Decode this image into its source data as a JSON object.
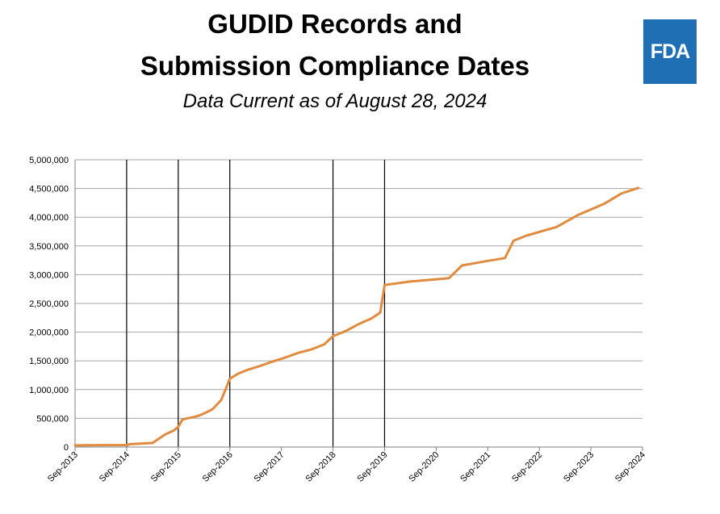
{
  "header": {
    "title_line1": "GUDID Records and",
    "title_line2": "Submission Compliance Dates",
    "subtitle": "Data Current as of August 28, 2024",
    "logo_text": "FDA"
  },
  "colors": {
    "line": "#e08b3e",
    "grid": "#a6a6a6",
    "marker": "#000000",
    "logo": "#1f6fb4"
  },
  "chart_data": {
    "type": "line",
    "title": "GUDID Records and Submission Compliance Dates",
    "subtitle": "Data Current as of August 28, 2024",
    "xlabel": "",
    "ylabel": "",
    "xlim": [
      "2013-09",
      "2024-09"
    ],
    "ylim": [
      0,
      5000000
    ],
    "x_ticks": [
      "Sep-2013",
      "Sep-2014",
      "Sep-2015",
      "Sep-2016",
      "Sep-2017",
      "Sep-2018",
      "Sep-2019",
      "Sep-2020",
      "Sep-2021",
      "Sep-2022",
      "Sep-2023",
      "Sep-2024"
    ],
    "y_ticks": [
      "0",
      "500,000",
      "1,000,000",
      "1,500,000",
      "2,000,000",
      "2,500,000",
      "3,000,000",
      "3,500,000",
      "4,000,000",
      "4,500,000",
      "5,000,000"
    ],
    "grid": true,
    "legend": "none",
    "compliance_dates": [
      "2014-09",
      "2015-09",
      "2016-09",
      "2018-09",
      "2019-09"
    ],
    "series": [
      {
        "points": [
          [
            "2013-09",
            30000
          ],
          [
            "2014-09",
            35000
          ],
          [
            "2014-10",
            50000
          ],
          [
            "2015-03",
            70000
          ],
          [
            "2015-06",
            220000
          ],
          [
            "2015-08",
            290000
          ],
          [
            "2015-09",
            350000
          ],
          [
            "2015-10",
            480000
          ],
          [
            "2016-01",
            530000
          ],
          [
            "2016-02",
            550000
          ],
          [
            "2016-04",
            620000
          ],
          [
            "2016-05",
            660000
          ],
          [
            "2016-07",
            820000
          ],
          [
            "2016-08",
            1000000
          ],
          [
            "2016-09",
            1190000
          ],
          [
            "2016-11",
            1280000
          ],
          [
            "2017-01",
            1340000
          ],
          [
            "2017-04",
            1410000
          ],
          [
            "2017-07",
            1490000
          ],
          [
            "2017-10",
            1560000
          ],
          [
            "2018-01",
            1640000
          ],
          [
            "2018-04",
            1700000
          ],
          [
            "2018-07",
            1790000
          ],
          [
            "2018-09",
            1930000
          ],
          [
            "2018-12",
            2020000
          ],
          [
            "2019-03",
            2140000
          ],
          [
            "2019-06",
            2240000
          ],
          [
            "2019-08",
            2340000
          ],
          [
            "2019-09",
            2820000
          ],
          [
            "2020-03",
            2880000
          ],
          [
            "2020-12",
            2940000
          ],
          [
            "2021-03",
            3160000
          ],
          [
            "2021-09",
            3240000
          ],
          [
            "2022-01",
            3290000
          ],
          [
            "2022-03",
            3590000
          ],
          [
            "2022-06",
            3680000
          ],
          [
            "2023-01",
            3830000
          ],
          [
            "2023-06",
            4040000
          ],
          [
            "2023-12",
            4230000
          ],
          [
            "2024-04",
            4410000
          ],
          [
            "2024-08",
            4510000
          ]
        ]
      }
    ]
  }
}
